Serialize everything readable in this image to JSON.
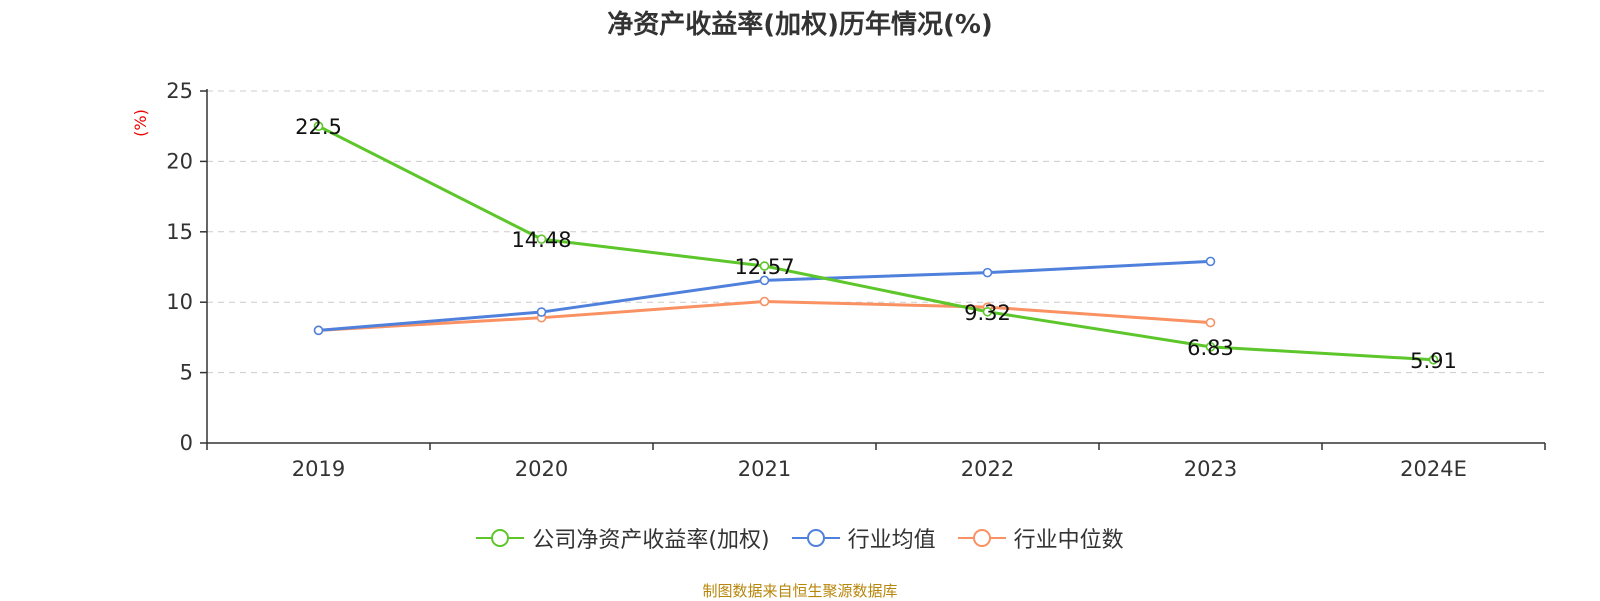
{
  "title": "净资产收益率(加权)历年情况(%)",
  "source": "制图数据来自恒生聚源数据库",
  "chart_data": {
    "type": "line",
    "categories": [
      "2019",
      "2020",
      "2021",
      "2022",
      "2023",
      "2024E"
    ],
    "ylabel": "(%)",
    "ylim": [
      0,
      25
    ],
    "yticks": [
      0,
      5,
      10,
      15,
      20,
      25
    ],
    "grid": true,
    "legend_position": "bottom",
    "series": [
      {
        "name": "公司净资产收益率(加权)",
        "color": "#5cc62a",
        "values": [
          22.5,
          14.48,
          12.57,
          9.32,
          6.83,
          5.91
        ],
        "labels": [
          "22.5",
          "14.48",
          "12.57",
          "9.32",
          "6.83",
          "5.91"
        ]
      },
      {
        "name": "行业均值",
        "color": "#4f80dc",
        "values": [
          8.0,
          9.3,
          11.55,
          12.1,
          12.9,
          null
        ]
      },
      {
        "name": "行业中位数",
        "color": "#f99163",
        "values": [
          8.0,
          8.9,
          10.05,
          9.65,
          8.55,
          null
        ]
      }
    ]
  }
}
